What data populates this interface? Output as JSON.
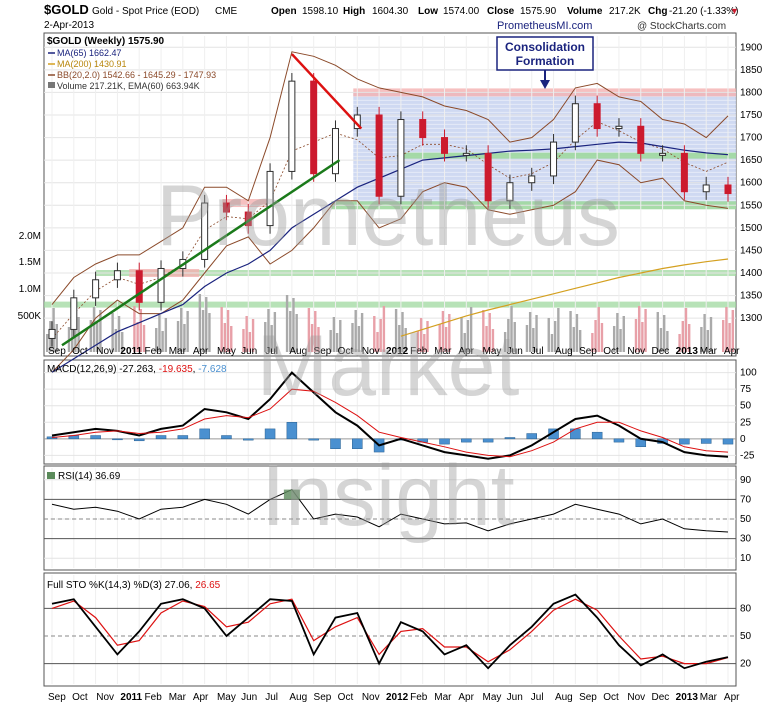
{
  "header": {
    "symbol": "$GOLD",
    "name": "Gold - Spot Price (EOD)",
    "exchange": "CME",
    "date": "2-Apr-2013",
    "open_label": "Open",
    "open": "1598.10",
    "high_label": "High",
    "high": "1604.30",
    "low_label": "Low",
    "low": "1574.00",
    "close_label": "Close",
    "close": "1575.90",
    "volume_label": "Volume",
    "volume": "217.2K",
    "chg_label": "Chg",
    "chg": "-21.20 (-1.33%)",
    "chg_arrow": "▼",
    "source_left": "PrometheusMI.com",
    "source_right": "@ StockCharts.com"
  },
  "watermark": [
    "Prometheus",
    "Market",
    "Insight"
  ],
  "colors": {
    "up": "#2f2f2f",
    "down": "#cc1a2e",
    "ma65": "#1a237e",
    "ma200": "#d4a020",
    "bb": "#8b4a2a",
    "vol_up": "#aaaaaa",
    "vol_down": "#e8a0a8",
    "trend_green": "#1a7a1a",
    "trend_red": "#dd1111",
    "zone_blue": "#c7d2f0",
    "zone_red": "#f4b0b0",
    "zone_green": "#9fd89f",
    "macd_hist": "#4a90d0"
  },
  "chart_data": [
    {
      "type": "line",
      "title": "$GOLD (Weekly) 1575.90",
      "series": [
        {
          "name": "MA(65) 1662.47"
        },
        {
          "name": "MA(200) 1430.91"
        },
        {
          "name": "BB(20,2.0) 1542.66 - 1645.29 - 1747.93"
        },
        {
          "name": "Volume 217.21K, EMA(60) 663.94K"
        }
      ],
      "annotation": [
        "Consolidation",
        "Formation"
      ],
      "y_ticks": [
        1900,
        1850,
        1800,
        1750,
        1700,
        1650,
        1600,
        1550,
        1500,
        1450,
        1400,
        1350,
        1300
      ],
      "vol_ticks": [
        "2.0M",
        "1.5M",
        "1.0M",
        "500K"
      ],
      "x_labels": [
        "Sep",
        "Oct",
        "Nov",
        "2011",
        "Feb",
        "Mar",
        "Apr",
        "May",
        "Jun",
        "Jul",
        "Aug",
        "Sep",
        "Oct",
        "Nov",
        "2012",
        "Feb",
        "Mar",
        "Apr",
        "May",
        "Jun",
        "Jul",
        "Aug",
        "Sep",
        "Oct",
        "Nov",
        "Dec",
        "2013",
        "Mar",
        "Apr"
      ],
      "ylim": [
        1225,
        1925
      ],
      "x": [
        "2010-09",
        "2010-10",
        "2010-11",
        "2010-12",
        "2011-01",
        "2011-02",
        "2011-03",
        "2011-04",
        "2011-05",
        "2011-06",
        "2011-07",
        "2011-08",
        "2011-09",
        "2011-10",
        "2011-11",
        "2011-12",
        "2012-01",
        "2012-02",
        "2012-03",
        "2012-04",
        "2012-05",
        "2012-06",
        "2012-07",
        "2012-08",
        "2012-09",
        "2012-10",
        "2012-11",
        "2012-12",
        "2013-01",
        "2013-02",
        "2013-03",
        "2013-04"
      ],
      "close": [
        1275,
        1345,
        1385,
        1405,
        1335,
        1410,
        1430,
        1555,
        1535,
        1505,
        1625,
        1825,
        1620,
        1720,
        1750,
        1570,
        1740,
        1700,
        1665,
        1665,
        1560,
        1600,
        1615,
        1690,
        1775,
        1720,
        1725,
        1665,
        1665,
        1580,
        1595,
        1576
      ],
      "ma65": [
        1180,
        1210,
        1240,
        1270,
        1290,
        1310,
        1330,
        1370,
        1400,
        1420,
        1450,
        1500,
        1530,
        1560,
        1590,
        1610,
        1630,
        1650,
        1655,
        1660,
        1665,
        1670,
        1672,
        1675,
        1680,
        1685,
        1690,
        1688,
        1680,
        1672,
        1666,
        1662
      ],
      "ma200": [
        null,
        null,
        null,
        null,
        null,
        null,
        null,
        null,
        null,
        null,
        null,
        null,
        null,
        null,
        null,
        null,
        1260,
        1275,
        1290,
        1305,
        1318,
        1330,
        1342,
        1354,
        1366,
        1378,
        1390,
        1400,
        1410,
        1418,
        1425,
        1431
      ],
      "bb_upper": [
        1330,
        1390,
        1420,
        1440,
        1440,
        1470,
        1500,
        1590,
        1590,
        1560,
        1700,
        1890,
        1880,
        1860,
        1830,
        1810,
        1800,
        1790,
        1770,
        1760,
        1740,
        1690,
        1700,
        1740,
        1810,
        1820,
        1790,
        1780,
        1740,
        1730,
        1700,
        1748
      ],
      "bb_lower": [
        1180,
        1230,
        1300,
        1340,
        1310,
        1310,
        1340,
        1400,
        1460,
        1480,
        1420,
        1450,
        1500,
        1560,
        1560,
        1500,
        1520,
        1580,
        1600,
        1590,
        1540,
        1530,
        1540,
        1550,
        1580,
        1650,
        1640,
        1600,
        1610,
        1560,
        1550,
        1543
      ],
      "horizontal_lines": [
        1800,
        1660,
        1550,
        1400,
        1330
      ],
      "consolidation_zone": [
        1550,
        1800
      ]
    },
    {
      "type": "line",
      "title": "MACD(12,26,9) -27.263, -19.635, -7.628",
      "series": [
        {
          "name": "-27.263"
        },
        {
          "name": "-19.635"
        },
        {
          "name": "-7.628"
        }
      ],
      "y_ticks": [
        100,
        75,
        50,
        25,
        0,
        -25
      ],
      "ylim": [
        -32,
        110
      ],
      "macd": [
        5,
        10,
        15,
        12,
        5,
        15,
        20,
        45,
        40,
        30,
        60,
        100,
        70,
        40,
        20,
        -10,
        0,
        -10,
        -20,
        -25,
        -30,
        -25,
        -10,
        10,
        30,
        35,
        20,
        0,
        -5,
        -20,
        -25,
        -27
      ],
      "signal": [
        2,
        5,
        10,
        12,
        8,
        10,
        15,
        30,
        35,
        32,
        45,
        75,
        72,
        55,
        35,
        10,
        2,
        -5,
        -12,
        -20,
        -25,
        -27,
        -18,
        -5,
        15,
        25,
        25,
        12,
        2,
        -12,
        -18,
        -20
      ],
      "histogram": [
        3,
        5,
        5,
        0,
        -3,
        5,
        5,
        15,
        5,
        -2,
        15,
        25,
        -2,
        -15,
        -15,
        -20,
        -2,
        -5,
        -8,
        -5,
        -5,
        2,
        8,
        15,
        15,
        10,
        -5,
        -12,
        -7,
        -8,
        -7,
        -8
      ]
    },
    {
      "type": "line",
      "title": "RSI(14) 36.69",
      "y_ticks": [
        90,
        70,
        50,
        30,
        10
      ],
      "ylim": [
        0,
        100
      ],
      "rsi": [
        65,
        60,
        62,
        58,
        50,
        60,
        62,
        70,
        65,
        55,
        70,
        80,
        50,
        55,
        52,
        42,
        55,
        50,
        45,
        46,
        38,
        45,
        50,
        55,
        65,
        60,
        55,
        45,
        50,
        40,
        38,
        36.7
      ]
    },
    {
      "type": "line",
      "title": "Full STO %K(14,3) %D(3) 27.06, 26.65",
      "series": [
        {
          "name": "27.06"
        },
        {
          "name": "26.65"
        }
      ],
      "y_ticks": [
        80,
        50,
        20
      ],
      "ylim": [
        0,
        100
      ],
      "k": [
        85,
        90,
        60,
        30,
        55,
        85,
        90,
        80,
        50,
        70,
        90,
        88,
        30,
        70,
        75,
        20,
        65,
        55,
        30,
        40,
        15,
        40,
        60,
        85,
        95,
        70,
        40,
        18,
        30,
        15,
        22,
        27.06
      ],
      "d": [
        80,
        88,
        70,
        40,
        45,
        75,
        88,
        82,
        60,
        65,
        85,
        90,
        45,
        60,
        70,
        30,
        55,
        58,
        38,
        38,
        22,
        35,
        55,
        78,
        90,
        78,
        50,
        25,
        28,
        20,
        20,
        26.65
      ]
    }
  ]
}
